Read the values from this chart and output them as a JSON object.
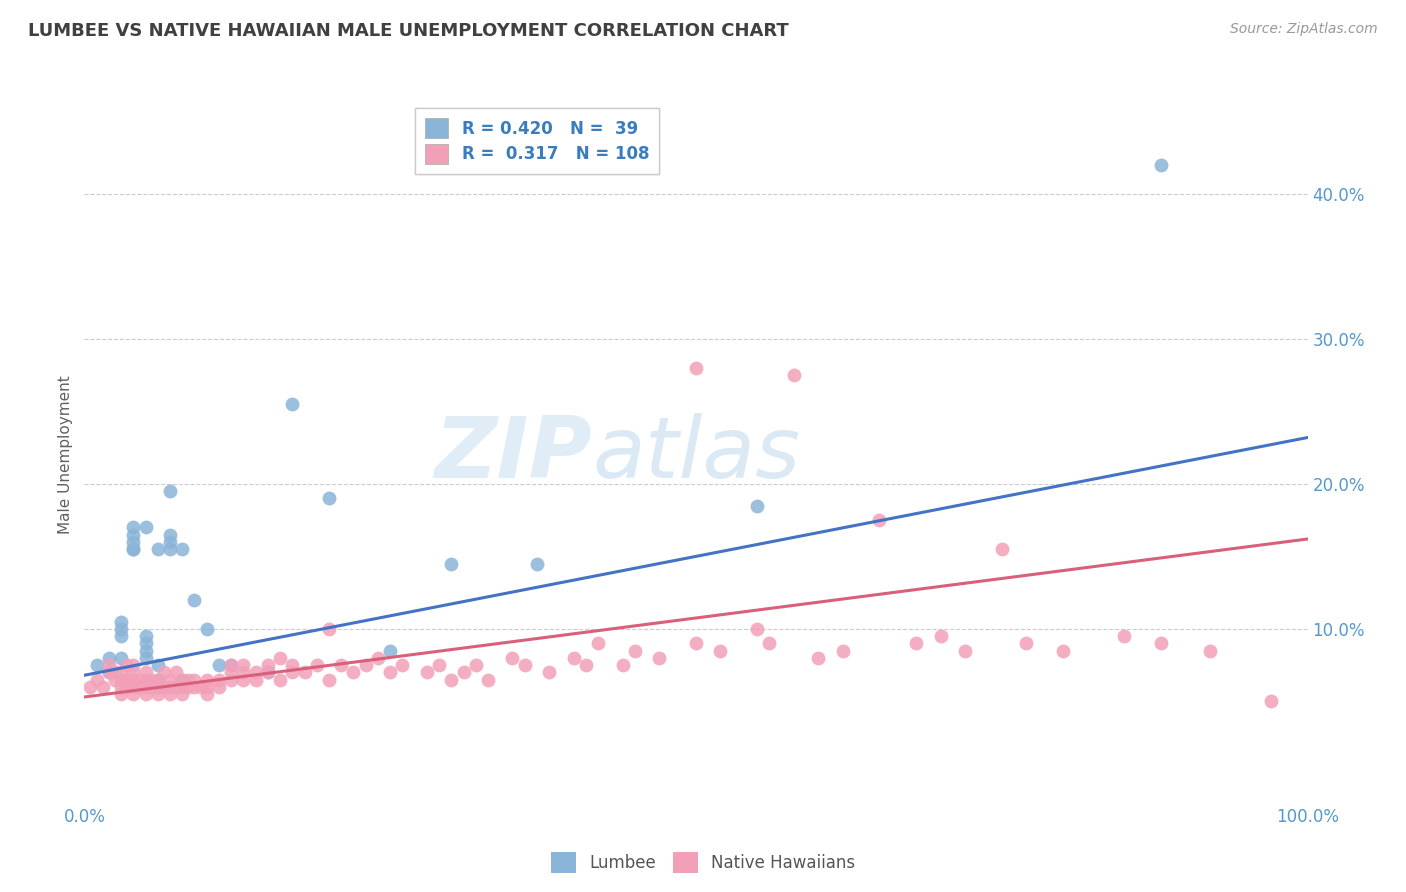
{
  "title": "LUMBEE VS NATIVE HAWAIIAN MALE UNEMPLOYMENT CORRELATION CHART",
  "source": "Source: ZipAtlas.com",
  "ylabel": "Male Unemployment",
  "xlim": [
    0.0,
    1.0
  ],
  "ylim": [
    -0.02,
    0.46
  ],
  "xtick_positions": [
    0.0,
    1.0
  ],
  "xtick_labels": [
    "0.0%",
    "100.0%"
  ],
  "ytick_values": [
    0.1,
    0.2,
    0.3,
    0.4
  ],
  "ytick_labels": [
    "10.0%",
    "20.0%",
    "30.0%",
    "40.0%"
  ],
  "watermark_zip": "ZIP",
  "watermark_atlas": "atlas",
  "blue_color": "#8ab4d8",
  "pink_color": "#f2a0b8",
  "blue_line_color": "#4472c4",
  "pink_line_color": "#d9607a",
  "title_color": "#404040",
  "axis_label_color": "#606060",
  "tick_color": "#5599cc",
  "grid_color": "#cccccc",
  "blue_line_start_y": 0.068,
  "blue_line_end_y": 0.232,
  "pink_line_start_y": 0.053,
  "pink_line_end_y": 0.162,
  "lumbee_x": [
    0.01,
    0.02,
    0.02,
    0.03,
    0.03,
    0.03,
    0.03,
    0.04,
    0.04,
    0.04,
    0.04,
    0.04,
    0.05,
    0.05,
    0.05,
    0.05,
    0.05,
    0.06,
    0.06,
    0.06,
    0.06,
    0.07,
    0.07,
    0.07,
    0.07,
    0.08,
    0.08,
    0.09,
    0.1,
    0.11,
    0.12,
    0.15,
    0.17,
    0.2,
    0.25,
    0.3,
    0.37,
    0.55,
    0.88
  ],
  "lumbee_y": [
    0.075,
    0.08,
    0.07,
    0.095,
    0.08,
    0.1,
    0.105,
    0.155,
    0.155,
    0.16,
    0.165,
    0.17,
    0.08,
    0.085,
    0.09,
    0.095,
    0.17,
    0.06,
    0.065,
    0.075,
    0.155,
    0.155,
    0.16,
    0.165,
    0.195,
    0.065,
    0.155,
    0.12,
    0.1,
    0.075,
    0.075,
    0.07,
    0.255,
    0.19,
    0.085,
    0.145,
    0.145,
    0.185,
    0.42
  ],
  "nh_x": [
    0.005,
    0.01,
    0.015,
    0.02,
    0.02,
    0.025,
    0.025,
    0.03,
    0.03,
    0.03,
    0.03,
    0.035,
    0.035,
    0.035,
    0.04,
    0.04,
    0.04,
    0.04,
    0.04,
    0.045,
    0.045,
    0.05,
    0.05,
    0.05,
    0.05,
    0.055,
    0.055,
    0.06,
    0.06,
    0.06,
    0.065,
    0.065,
    0.07,
    0.07,
    0.07,
    0.075,
    0.075,
    0.08,
    0.08,
    0.08,
    0.085,
    0.085,
    0.09,
    0.09,
    0.095,
    0.1,
    0.1,
    0.1,
    0.11,
    0.11,
    0.12,
    0.12,
    0.12,
    0.13,
    0.13,
    0.13,
    0.14,
    0.14,
    0.15,
    0.15,
    0.16,
    0.16,
    0.17,
    0.17,
    0.18,
    0.19,
    0.2,
    0.2,
    0.21,
    0.22,
    0.23,
    0.24,
    0.25,
    0.26,
    0.28,
    0.29,
    0.3,
    0.31,
    0.32,
    0.33,
    0.35,
    0.36,
    0.38,
    0.4,
    0.41,
    0.42,
    0.44,
    0.45,
    0.47,
    0.5,
    0.5,
    0.52,
    0.55,
    0.56,
    0.58,
    0.6,
    0.62,
    0.65,
    0.68,
    0.7,
    0.72,
    0.75,
    0.77,
    0.8,
    0.85,
    0.88,
    0.92,
    0.97
  ],
  "nh_y": [
    0.06,
    0.065,
    0.06,
    0.07,
    0.075,
    0.065,
    0.07,
    0.055,
    0.06,
    0.065,
    0.07,
    0.06,
    0.065,
    0.075,
    0.055,
    0.06,
    0.065,
    0.07,
    0.075,
    0.06,
    0.065,
    0.055,
    0.06,
    0.065,
    0.07,
    0.06,
    0.065,
    0.055,
    0.06,
    0.065,
    0.06,
    0.07,
    0.055,
    0.06,
    0.065,
    0.06,
    0.07,
    0.055,
    0.06,
    0.065,
    0.06,
    0.065,
    0.06,
    0.065,
    0.06,
    0.055,
    0.06,
    0.065,
    0.06,
    0.065,
    0.065,
    0.07,
    0.075,
    0.065,
    0.07,
    0.075,
    0.065,
    0.07,
    0.07,
    0.075,
    0.065,
    0.08,
    0.07,
    0.075,
    0.07,
    0.075,
    0.065,
    0.1,
    0.075,
    0.07,
    0.075,
    0.08,
    0.07,
    0.075,
    0.07,
    0.075,
    0.065,
    0.07,
    0.075,
    0.065,
    0.08,
    0.075,
    0.07,
    0.08,
    0.075,
    0.09,
    0.075,
    0.085,
    0.08,
    0.09,
    0.28,
    0.085,
    0.1,
    0.09,
    0.275,
    0.08,
    0.085,
    0.175,
    0.09,
    0.095,
    0.085,
    0.155,
    0.09,
    0.085,
    0.095,
    0.09,
    0.085,
    0.05
  ]
}
